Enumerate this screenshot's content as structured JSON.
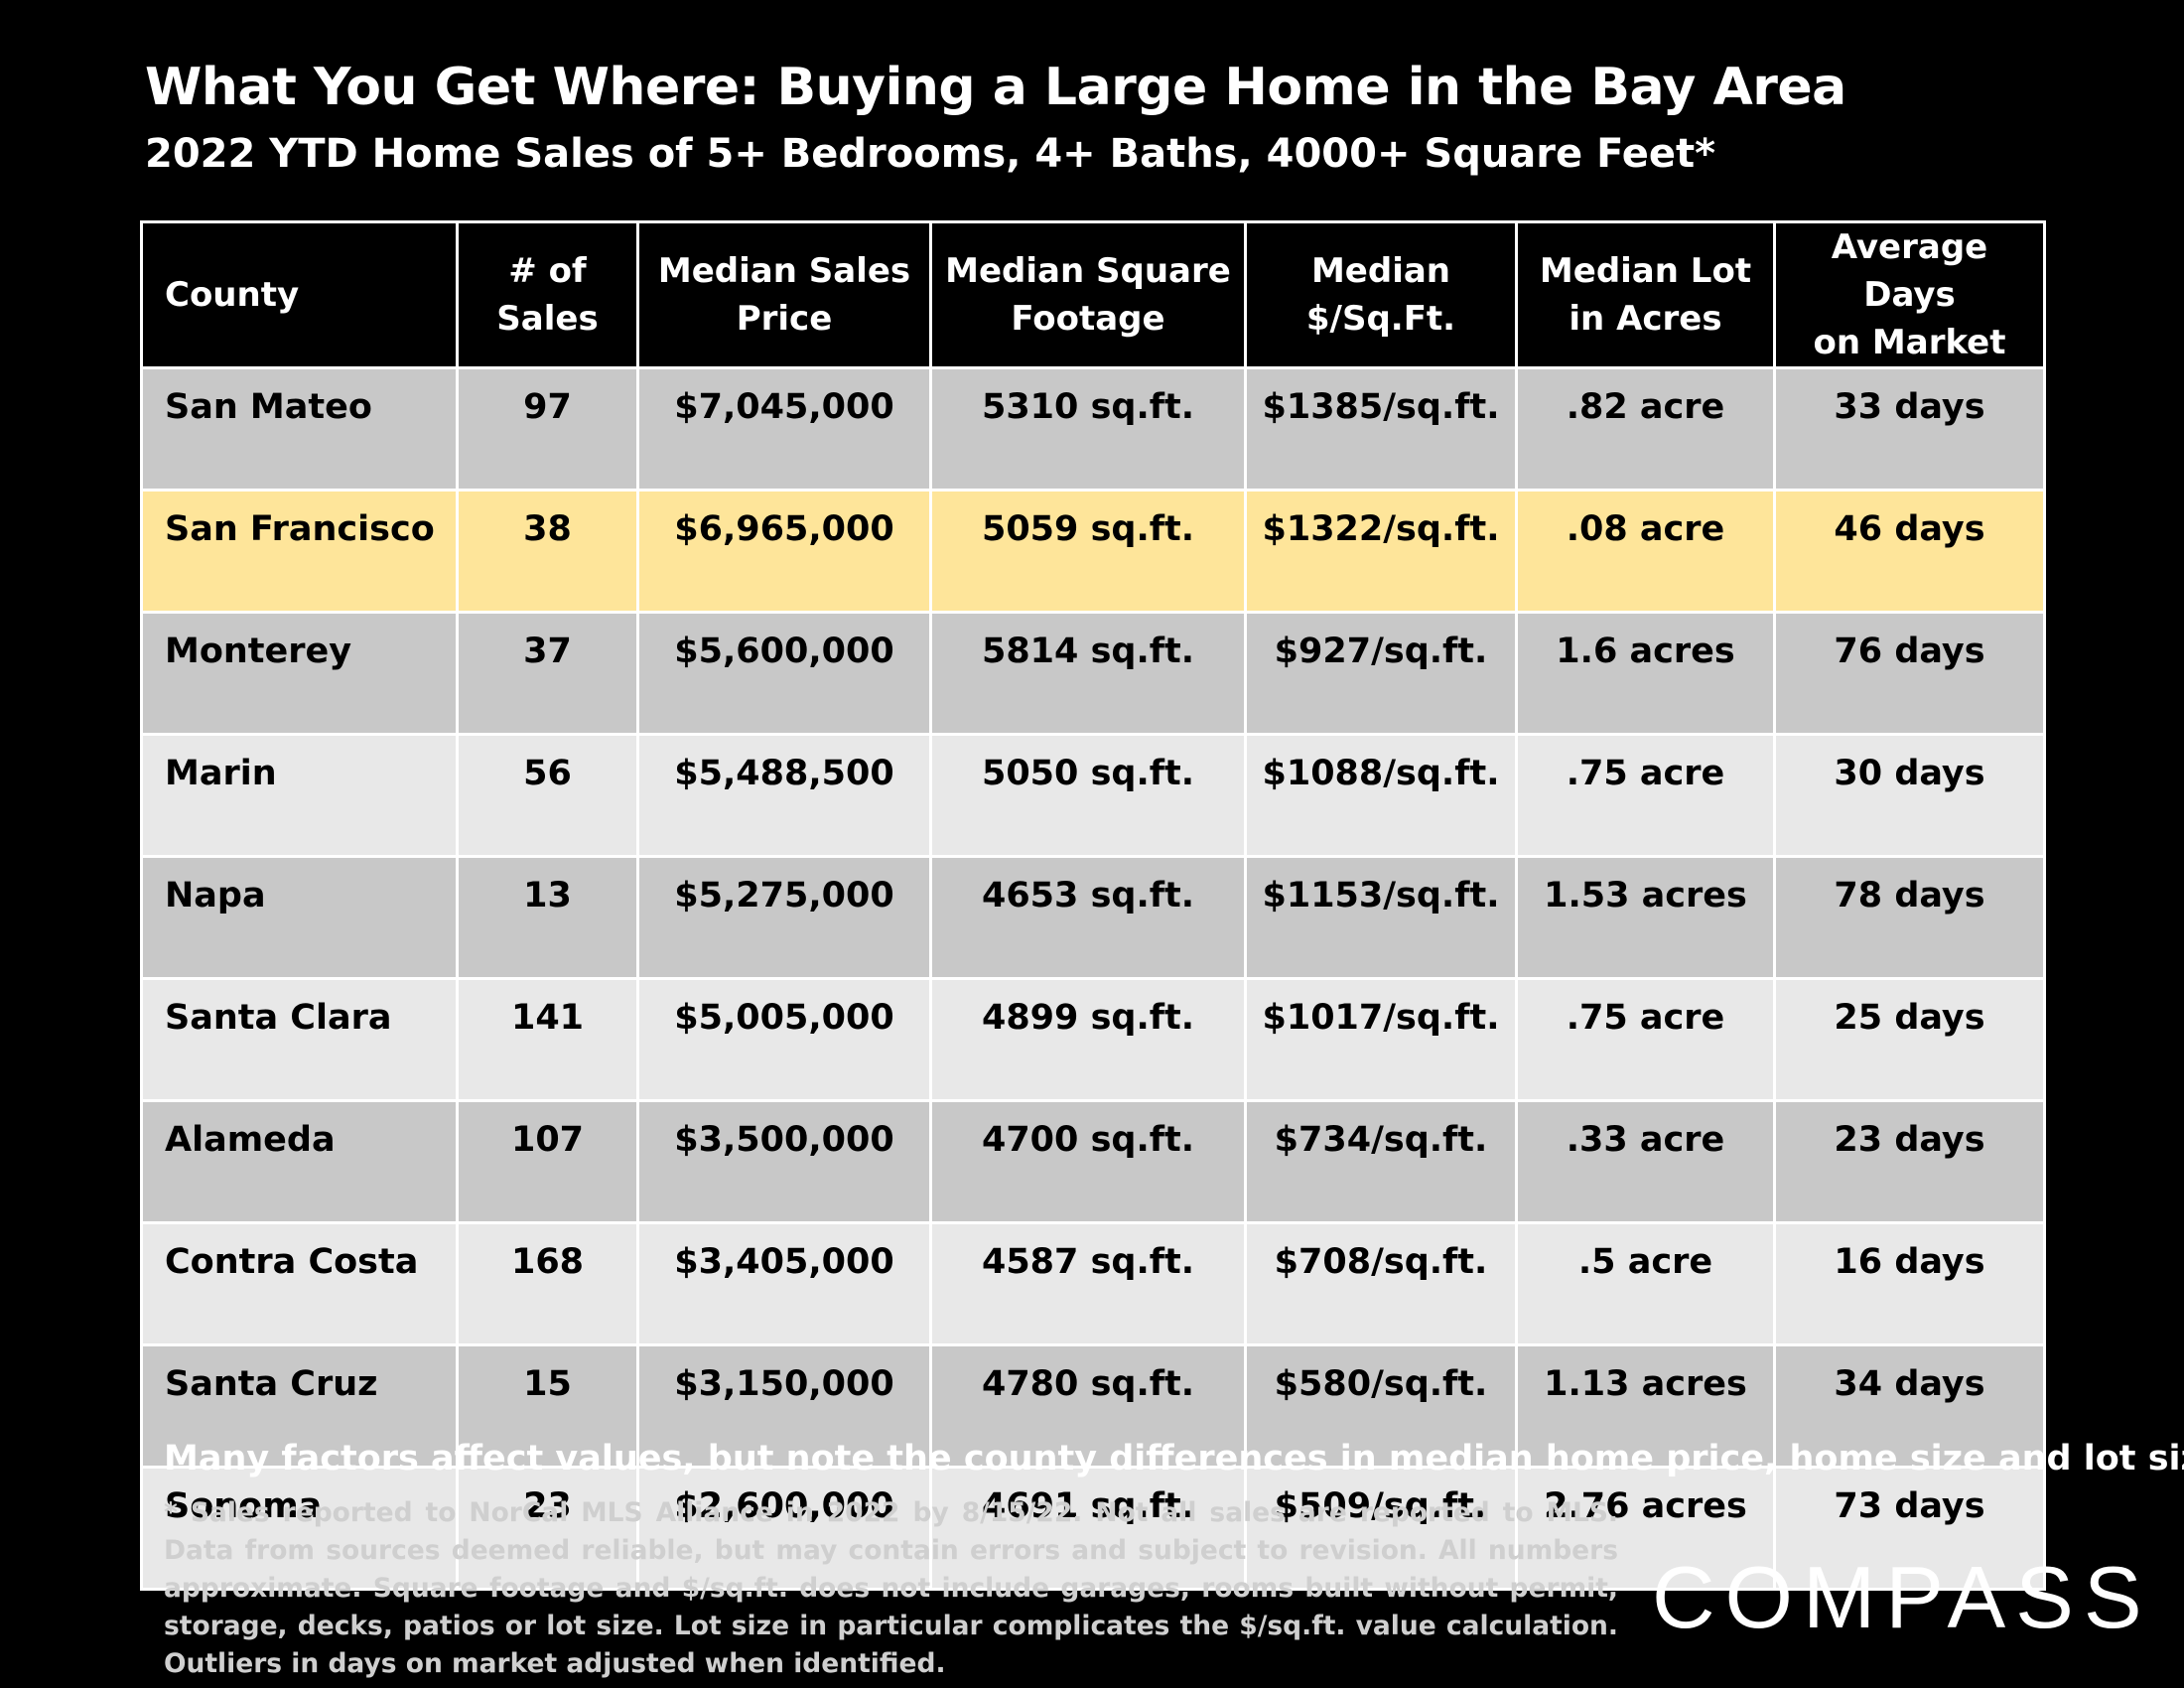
{
  "title": "What You Get Where: Buying a Large Home in the Bay Area",
  "subtitle": "2022 YTD Home Sales of 5+ Bedrooms, 4+ Baths, 4000+ Square Feet*",
  "chart_data": {
    "type": "table",
    "columns": [
      "County",
      "# of Sales",
      "Median Sales Price",
      "Median Square Footage",
      "Median $/Sq.Ft.",
      "Median Lot in Acres",
      "Average Days on Market"
    ],
    "rows": [
      [
        "San Mateo",
        "97",
        "$7,045,000",
        "5310 sq.ft.",
        "$1385/sq.ft.",
        ".82 acre",
        "33 days"
      ],
      [
        "San Francisco",
        "38",
        "$6,965,000",
        "5059 sq.ft.",
        "$1322/sq.ft.",
        ".08 acre",
        "46 days"
      ],
      [
        "Monterey",
        "37",
        "$5,600,000",
        "5814 sq.ft.",
        "$927/sq.ft.",
        "1.6 acres",
        "76 days"
      ],
      [
        "Marin",
        "56",
        "$5,488,500",
        "5050 sq.ft.",
        "$1088/sq.ft.",
        ".75 acre",
        "30 days"
      ],
      [
        "Napa",
        "13",
        "$5,275,000",
        "4653 sq.ft.",
        "$1153/sq.ft.",
        "1.53 acres",
        "78 days"
      ],
      [
        "Santa Clara",
        "141",
        "$5,005,000",
        "4899 sq.ft.",
        "$1017/sq.ft.",
        ".75 acre",
        "25 days"
      ],
      [
        "Alameda",
        "107",
        "$3,500,000",
        "4700 sq.ft.",
        "$734/sq.ft.",
        ".33 acre",
        "23 days"
      ],
      [
        "Contra Costa",
        "168",
        "$3,405,000",
        "4587 sq.ft.",
        "$708/sq.ft.",
        ".5 acre",
        "16 days"
      ],
      [
        "Santa Cruz",
        "15",
        "$3,150,000",
        "4780 sq.ft.",
        "$580/sq.ft.",
        "1.13 acres",
        "34 days"
      ],
      [
        "Sonoma",
        "23",
        "$2,600,000",
        "4691 sq.ft.",
        "$509/sq.ft.",
        "2.76 acres",
        "73 days"
      ]
    ],
    "highlighted_row": "San Francisco"
  },
  "note": "Many factors affect values, but note the county differences in median home price, home size and lot size.",
  "footnote": "* Sales reported to NorCal MLS Alliance in 2022 by 8/15/22. Not all sales are reported to MLS. Data from sources deemed reliable, but may contain errors and subject to revision. All numbers approximate. Square footage and $/sq.ft. does not include garages, rooms built without permit, storage, decks, patios or lot size. Lot size in particular complicates the $/sq.ft. value calculation. Outliers in days on market adjusted when identified.",
  "logo": "COMPASS",
  "colors": {
    "background": "#000000",
    "row_dark": "#c8c8c8",
    "row_light": "#e8e8e8",
    "row_highlight": "#fee59a"
  }
}
